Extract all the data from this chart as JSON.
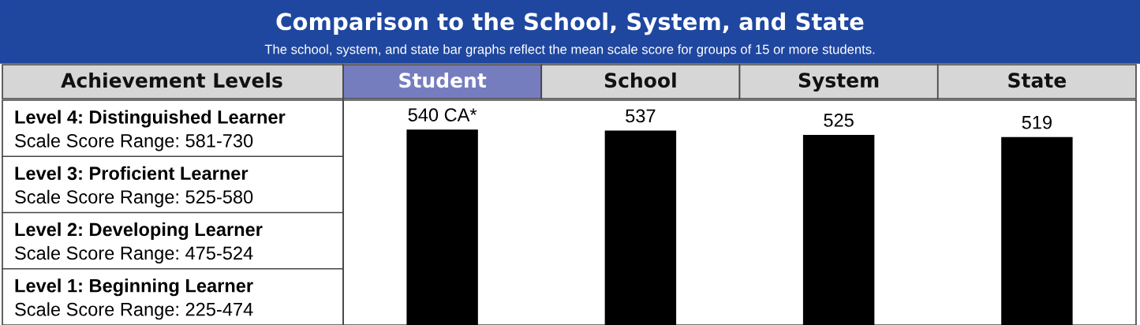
{
  "chart_data": {
    "type": "bar",
    "title": "Comparison to the School, System, and State",
    "subtitle": "The school, system, and state bar graphs reflect the mean scale score for groups of 15 or more students.",
    "categories": [
      "Student",
      "School",
      "System",
      "State"
    ],
    "values": [
      540,
      537,
      525,
      519
    ],
    "value_labels": [
      "540 CA*",
      "537",
      "525",
      "519"
    ],
    "color": "#000000",
    "annotations": [
      "Achievement Levels",
      "Level 4: Distinguished Learner",
      "Scale Score Range: 581-730",
      "Level 3: Proficient Learner",
      "Scale Score Range: 525-580",
      "Level 2: Developing Learner",
      "Scale Score Range: 475-524",
      "Level 1: Beginning Learner",
      "Scale Score Range: 225-474"
    ]
  }
}
